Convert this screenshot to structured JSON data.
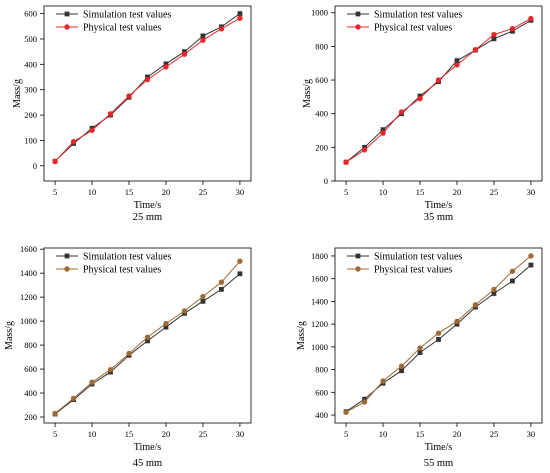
{
  "chart_data": [
    {
      "type": "line",
      "caption": "25 mm",
      "xlabel": "Time/s",
      "ylabel": "Mass/g",
      "x": [
        5,
        7.5,
        10,
        12.5,
        15,
        17.5,
        20,
        22.5,
        25,
        27.5,
        30
      ],
      "xlim": [
        3.5,
        31.5
      ],
      "xticks": [
        5,
        10,
        15,
        20,
        25,
        30
      ],
      "ylim": [
        -60,
        630
      ],
      "yticks": [
        0,
        100,
        200,
        300,
        400,
        500,
        600
      ],
      "legend_position": "top-left",
      "series": [
        {
          "name": "Simulation test values",
          "color": "#333333",
          "marker": "square",
          "values": [
            18,
            88,
            148,
            200,
            270,
            350,
            402,
            450,
            512,
            548,
            600
          ]
        },
        {
          "name": "Physical test values",
          "color": "#e8272a",
          "marker": "circle",
          "values": [
            17,
            95,
            140,
            205,
            275,
            340,
            390,
            440,
            495,
            540,
            582
          ]
        }
      ]
    },
    {
      "type": "line",
      "caption": "35 mm",
      "xlabel": "Time/s",
      "ylabel": "Mass/g",
      "x": [
        5,
        7.5,
        10,
        12.5,
        15,
        17.5,
        20,
        22.5,
        25,
        27.5,
        30
      ],
      "xlim": [
        3.5,
        31.5
      ],
      "xticks": [
        5,
        10,
        15,
        20,
        25,
        30
      ],
      "ylim": [
        0,
        1040
      ],
      "yticks": [
        0,
        200,
        400,
        600,
        800,
        1000
      ],
      "legend_position": "top-left",
      "series": [
        {
          "name": "Simulation test values",
          "color": "#333333",
          "marker": "square",
          "values": [
            112,
            200,
            305,
            400,
            505,
            590,
            715,
            778,
            845,
            890,
            955
          ]
        },
        {
          "name": "Physical test values",
          "color": "#e8272a",
          "marker": "circle",
          "values": [
            112,
            185,
            285,
            410,
            490,
            600,
            690,
            780,
            870,
            905,
            965
          ]
        }
      ]
    },
    {
      "type": "line",
      "caption": "45 mm",
      "xlabel": "Time/s",
      "ylabel": "Mass/g",
      "x": [
        5,
        7.5,
        10,
        12.5,
        15,
        17.5,
        20,
        22.5,
        25,
        27.5,
        30
      ],
      "xlim": [
        3.5,
        31.5
      ],
      "xticks": [
        5,
        10,
        15,
        20,
        25,
        30
      ],
      "ylim": [
        150,
        1610
      ],
      "yticks": [
        200,
        400,
        600,
        800,
        1000,
        1200,
        1400,
        1600
      ],
      "legend_position": "top-left",
      "series": [
        {
          "name": "Simulation test values",
          "color": "#333333",
          "marker": "square",
          "values": [
            225,
            345,
            475,
            575,
            715,
            835,
            950,
            1065,
            1165,
            1265,
            1395
          ]
        },
        {
          "name": "Physical test values",
          "color": "#9e6b34",
          "marker": "circle",
          "values": [
            230,
            355,
            490,
            595,
            730,
            865,
            980,
            1085,
            1205,
            1325,
            1500
          ]
        }
      ]
    },
    {
      "type": "line",
      "caption": "55 mm",
      "xlabel": "Time/s",
      "ylabel": "Mass/g",
      "x": [
        5,
        7.5,
        10,
        12.5,
        15,
        17.5,
        20,
        22.5,
        25,
        27.5,
        30
      ],
      "xlim": [
        3.5,
        31.5
      ],
      "xticks": [
        5,
        10,
        15,
        20,
        25,
        30
      ],
      "ylim": [
        330,
        1870
      ],
      "yticks": [
        400,
        600,
        800,
        1000,
        1200,
        1400,
        1600,
        1800
      ],
      "legend_position": "top-left",
      "series": [
        {
          "name": "Simulation test values",
          "color": "#333333",
          "marker": "square",
          "values": [
            430,
            540,
            680,
            790,
            950,
            1065,
            1200,
            1350,
            1470,
            1580,
            1720
          ]
        },
        {
          "name": "Physical test values",
          "color": "#9e6b34",
          "marker": "circle",
          "values": [
            425,
            515,
            700,
            830,
            990,
            1120,
            1225,
            1370,
            1505,
            1665,
            1800
          ]
        }
      ]
    }
  ]
}
